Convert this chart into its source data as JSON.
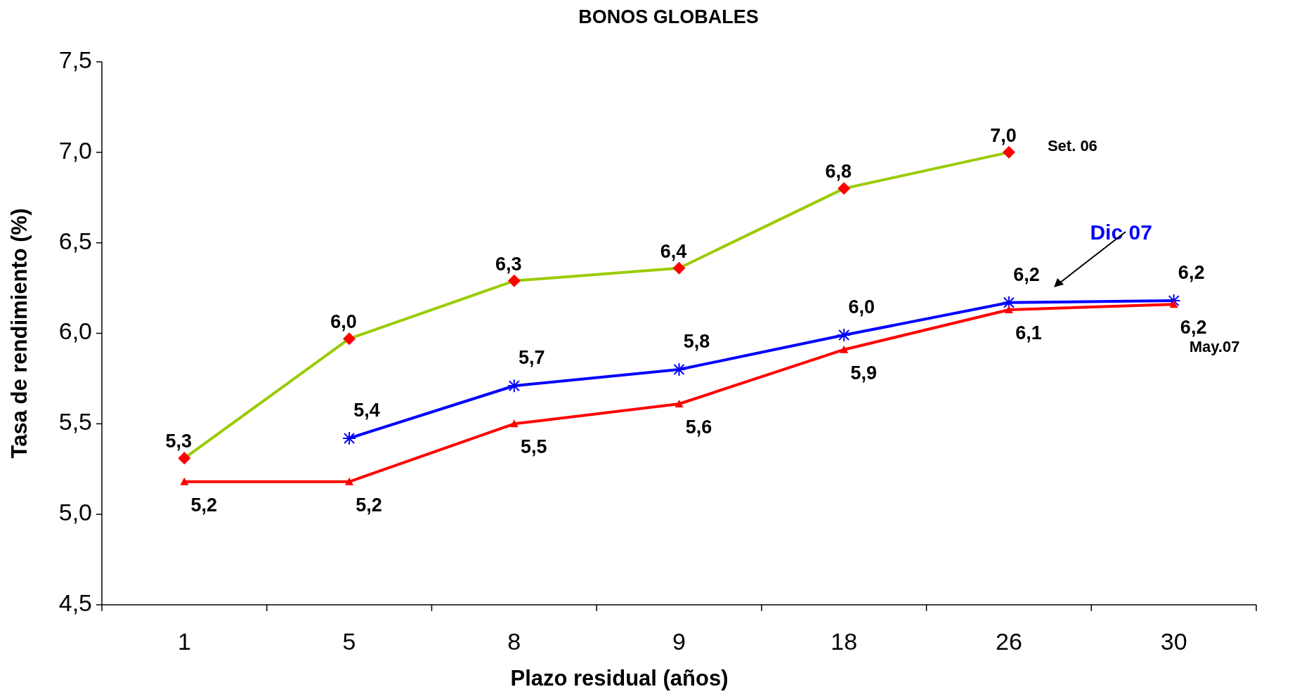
{
  "chart_data": {
    "type": "line",
    "title": "BONOS GLOBALES",
    "xlabel": "Plazo residual (años)",
    "ylabel": "Tasa de rendimiento (%)",
    "categories": [
      "1",
      "5",
      "8",
      "9",
      "18",
      "26",
      "30"
    ],
    "series": [
      {
        "name": "Set. 06",
        "color": "#99cc00",
        "colors": [
          "#ff0000",
          "#ff0000",
          "#ff0000",
          "#ff0000",
          "#ff0000",
          "#ff0000",
          null
        ],
        "marker": "diamond",
        "values": [
          5.31,
          5.97,
          6.29,
          6.36,
          6.8,
          7.0,
          null
        ],
        "value_labels": [
          "5,3",
          "6,0",
          "6,3",
          "6,4",
          "6,8",
          "7,0",
          null
        ]
      },
      {
        "name": "Dic 07",
        "color": "#0000ff",
        "marker": "cross",
        "values": [
          null,
          5.42,
          5.71,
          5.8,
          5.99,
          6.17,
          6.18
        ],
        "value_labels": [
          null,
          "5,4",
          "5,7",
          "5,8",
          "6,0",
          "6,2",
          "6,2"
        ]
      },
      {
        "name": "May.07",
        "color": "#ff0000",
        "marker": "triangle",
        "values": [
          5.18,
          5.18,
          5.5,
          5.61,
          5.91,
          6.13,
          6.16
        ],
        "value_labels": [
          "5,2",
          "5,2",
          "5,5",
          "5,6",
          "5,9",
          "6,1",
          "6,2"
        ]
      }
    ],
    "ylim": [
      4.5,
      7.5
    ],
    "yticks": [
      {
        "value": 4.5,
        "label": "4,5"
      },
      {
        "value": 5,
        "label": "5,0"
      },
      {
        "value": 5.5,
        "label": "5,5"
      },
      {
        "value": 6,
        "label": "6,0"
      },
      {
        "value": 6.5,
        "label": "6,5"
      },
      {
        "value": 7,
        "label": "7,0"
      },
      {
        "value": 7.5,
        "label": "7,5"
      }
    ],
    "grid": false,
    "legend": false
  }
}
